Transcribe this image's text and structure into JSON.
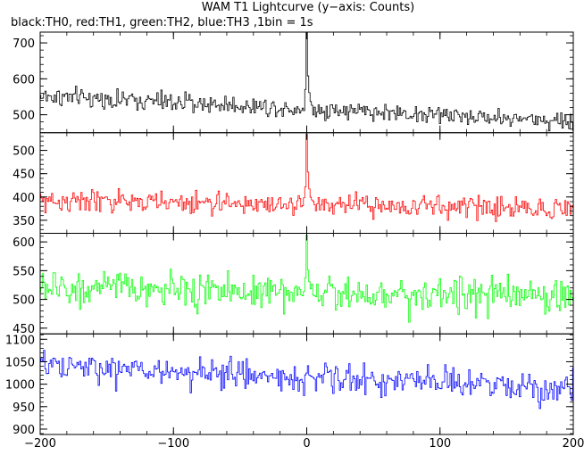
{
  "chart_data": {
    "type": "line",
    "title": "WAM T1 Lightcurve (y−axis: Counts)",
    "subtitle": "black:TH0, red:TH1, green:TH2, blue:TH3 ,1bin = 1s",
    "xlabel": "",
    "ylabel": "",
    "xlim": [
      -200,
      200
    ],
    "x_ticks": [
      -200,
      -100,
      0,
      100,
      200
    ],
    "x_tick_labels": [
      "−200",
      "−100",
      "0",
      "100",
      "200"
    ],
    "grid": false,
    "panels": [
      {
        "series": "TH0",
        "color": "#000000",
        "ylim": [
          450,
          730
        ],
        "y_ticks": [
          500,
          600,
          700
        ],
        "baseline_start": 552,
        "baseline_end": 482,
        "noise": 22,
        "peak": {
          "x": 0,
          "y": 730
        }
      },
      {
        "series": "TH1",
        "color": "#ff0000",
        "ylim": [
          322,
          538
        ],
        "y_ticks": [
          350,
          400,
          450,
          500
        ],
        "baseline_start": 392,
        "baseline_end": 375,
        "noise": 20,
        "peak": {
          "x": 0,
          "y": 535
        }
      },
      {
        "series": "TH2",
        "color": "#00ff00",
        "ylim": [
          440,
          615
        ],
        "y_ticks": [
          450,
          500,
          550,
          600
        ],
        "baseline_start": 520,
        "baseline_end": 505,
        "noise": 25,
        "peak": {
          "x": 0,
          "y": 612
        }
      },
      {
        "series": "TH3",
        "color": "#0000ff",
        "ylim": [
          888,
          1112
        ],
        "y_ticks": [
          900,
          950,
          1000,
          1050,
          1100
        ],
        "baseline_start": 1040,
        "baseline_end": 990,
        "noise": 28,
        "peak": null
      }
    ]
  }
}
